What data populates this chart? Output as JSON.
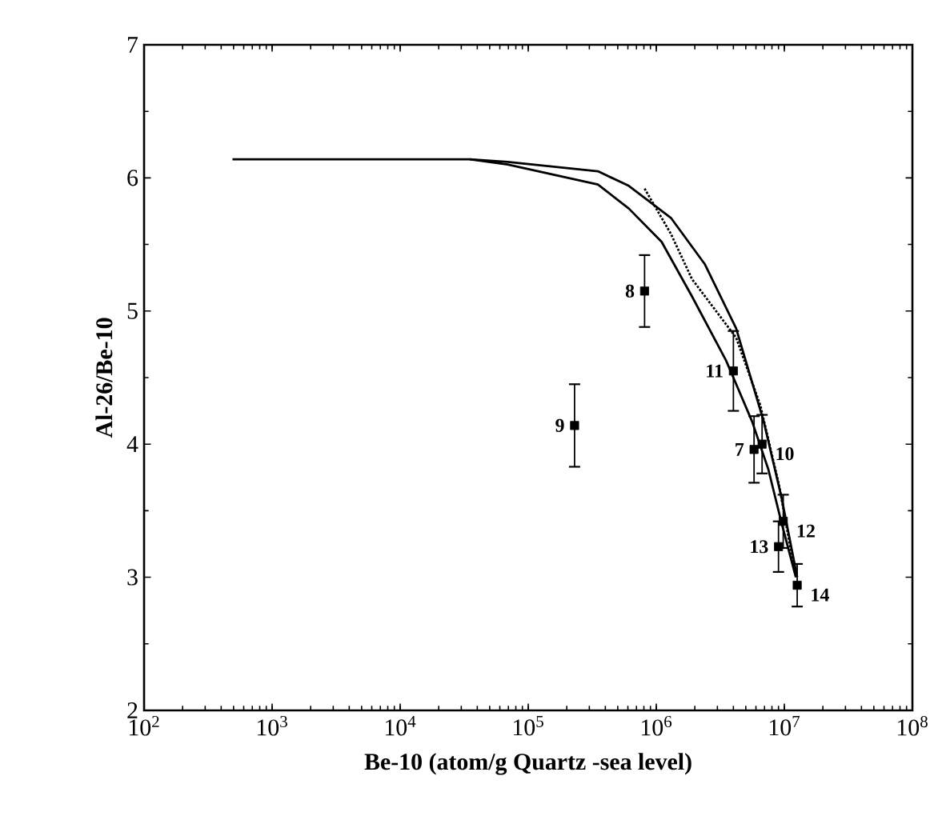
{
  "chart_data": {
    "type": "scatter",
    "xlabel": "Be-10 (atom/g Quartz -sea level)",
    "ylabel": "Al-26/Be-10",
    "log": "x",
    "xlim": [
      100,
      100000000
    ],
    "ylim": [
      2,
      7
    ],
    "xticks": [
      {
        "value": 100,
        "label": "10$^{2}$"
      },
      {
        "value": 1000,
        "label": "10$^{3}$"
      },
      {
        "value": 10000,
        "label": "10$^{4}$"
      },
      {
        "value": 100000,
        "label": "10$^{5}$"
      },
      {
        "value": 1000000,
        "label": "10$^{6}$"
      },
      {
        "value": 10000000,
        "label": "10$^{7}$"
      },
      {
        "value": 100000000,
        "label": "10$^{8}$"
      }
    ],
    "yticks": [
      2,
      3,
      4,
      5,
      6,
      7
    ],
    "grid": false,
    "series": [
      {
        "type": "line",
        "color": "#000000",
        "line_style": "solid",
        "marker": "none",
        "x": [
          490,
          35000,
          69000,
          350000,
          610000,
          1100000,
          1900000,
          3500000,
          4000000,
          5600000,
          7500000,
          9500000,
          12300000
        ],
        "values": [
          6.14,
          6.14,
          6.1,
          5.95,
          5.77,
          5.52,
          5.11,
          4.63,
          4.5,
          4.17,
          3.81,
          3.41,
          3.0
        ]
      },
      {
        "type": "line",
        "color": "#000000",
        "line_style": "solid",
        "marker": "none",
        "x": [
          35000,
          69000,
          350000,
          610000,
          1300000,
          2400000,
          4200000,
          6900000,
          9500000,
          12600000
        ],
        "values": [
          6.14,
          6.12,
          6.05,
          5.94,
          5.7,
          5.35,
          4.87,
          4.17,
          3.6,
          3.0
        ]
      },
      {
        "type": "line",
        "color": "#000000",
        "line_style": "dotted",
        "marker": "none",
        "x": [
          810000,
          1300000,
          1900000,
          4200000,
          6500000,
          9100000,
          12000000
        ],
        "values": [
          5.92,
          5.58,
          5.24,
          4.8,
          4.29,
          3.69,
          3.05
        ]
      },
      {
        "color": "#000000",
        "marker": "square",
        "x": [
          810000,
          230000,
          4000000,
          5800000,
          6700000,
          9800000,
          9000000,
          12600000
        ],
        "values": [
          5.15,
          4.14,
          4.55,
          3.96,
          4.0,
          3.42,
          3.23,
          2.94
        ],
        "errors": [
          0.27,
          0.31,
          0.3,
          0.25,
          0.22,
          0.2,
          0.19,
          0.16
        ]
      }
    ],
    "annotations": [
      {
        "text": "8",
        "x": 810000,
        "y": 5.15
      },
      {
        "text": "9",
        "x": 230000,
        "y": 4.14
      },
      {
        "text": "11",
        "x": 4000000,
        "y": 4.55
      },
      {
        "text": "7",
        "x": 5800000,
        "y": 3.96
      },
      {
        "text": "10",
        "x": 6700000,
        "y": 4.0
      },
      {
        "text": "12",
        "x": 9800000,
        "y": 3.42
      },
      {
        "text": "13",
        "x": 9000000,
        "y": 3.23
      },
      {
        "text": "14",
        "x": 12600000,
        "y": 2.94
      }
    ]
  }
}
